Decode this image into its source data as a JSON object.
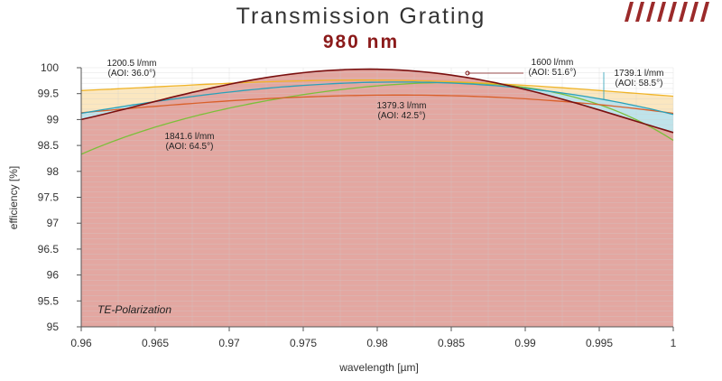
{
  "chart_data": {
    "type": "line",
    "title": "Transmission Grating",
    "subtitle": "980 nm",
    "xlabel": "wavelength [µm]",
    "ylabel": "efficiency [%]",
    "xlim": [
      0.96,
      1.0
    ],
    "ylim": [
      95,
      100
    ],
    "xticks": [
      0.96,
      0.965,
      0.97,
      0.975,
      0.98,
      0.985,
      0.99,
      0.995,
      1
    ],
    "xtick_labels": [
      "0.96",
      "0.965",
      "0.97",
      "0.975",
      "0.98",
      "0.985",
      "0.99",
      "0.995",
      "1"
    ],
    "yticks": [
      95,
      95.5,
      96,
      96.5,
      97,
      97.5,
      98,
      98.5,
      99,
      99.5,
      100
    ],
    "ytick_labels": [
      "95",
      "95.5",
      "96",
      "96.5",
      "97",
      "97.5",
      "98",
      "98.5",
      "99",
      "99.5",
      "100"
    ],
    "grid": true,
    "polarization_label": "TE-Polarization",
    "series": [
      {
        "name": "1841.6 l/mm",
        "aoi": "(AOI: 64.5°)",
        "color": "#7cbf3a",
        "fill": "#e4f2cf",
        "x": [
          0.96,
          0.97,
          0.98,
          0.99,
          1.0
        ],
        "y": [
          98.33,
          99.22,
          99.65,
          99.62,
          98.6
        ]
      },
      {
        "name": "1200.5 l/mm",
        "aoi": "(AOI: 36.0°)",
        "color": "#f0b428",
        "fill": "#fbe7c0",
        "x": [
          0.96,
          0.97,
          0.98,
          0.99,
          1.0
        ],
        "y": [
          99.56,
          99.7,
          99.76,
          99.66,
          99.45
        ]
      },
      {
        "name": "1379.3 l/mm",
        "aoi": "(AOI: 42.5°)",
        "color": "#d9602a",
        "fill": "#f8c9a4",
        "x": [
          0.96,
          0.97,
          0.98,
          0.99,
          1.0
        ],
        "y": [
          99.13,
          99.36,
          99.47,
          99.4,
          99.12
        ]
      },
      {
        "name": "1739.1 l/mm",
        "aoi": "(AOI: 58.5°)",
        "color": "#2aa0b8",
        "fill": "#bfe3ea",
        "x": [
          0.96,
          0.97,
          0.98,
          0.99,
          1.0
        ],
        "y": [
          99.12,
          99.53,
          99.72,
          99.6,
          99.1
        ]
      },
      {
        "name": "1600 l/mm",
        "aoi": "(AOI: 51.6°)",
        "color": "#7a1010",
        "fill": "#e3a7a1",
        "x": [
          0.96,
          0.97,
          0.98,
          0.99,
          1.0
        ],
        "y": [
          99.0,
          99.68,
          99.97,
          99.58,
          98.75
        ]
      }
    ],
    "annotations": [
      {
        "name": "1200.5 l/mm",
        "aoi": "(AOI: 36.0°)"
      },
      {
        "name": "1600 l/mm",
        "aoi": "(AOI: 51.6°)"
      },
      {
        "name": "1739.1 l/mm",
        "aoi": "(AOI: 58.5°)"
      },
      {
        "name": "1379.3 l/mm",
        "aoi": "(AOI: 42.5°)"
      },
      {
        "name": "1841.6 l/mm",
        "aoi": "(AOI: 64.5°)"
      }
    ]
  }
}
